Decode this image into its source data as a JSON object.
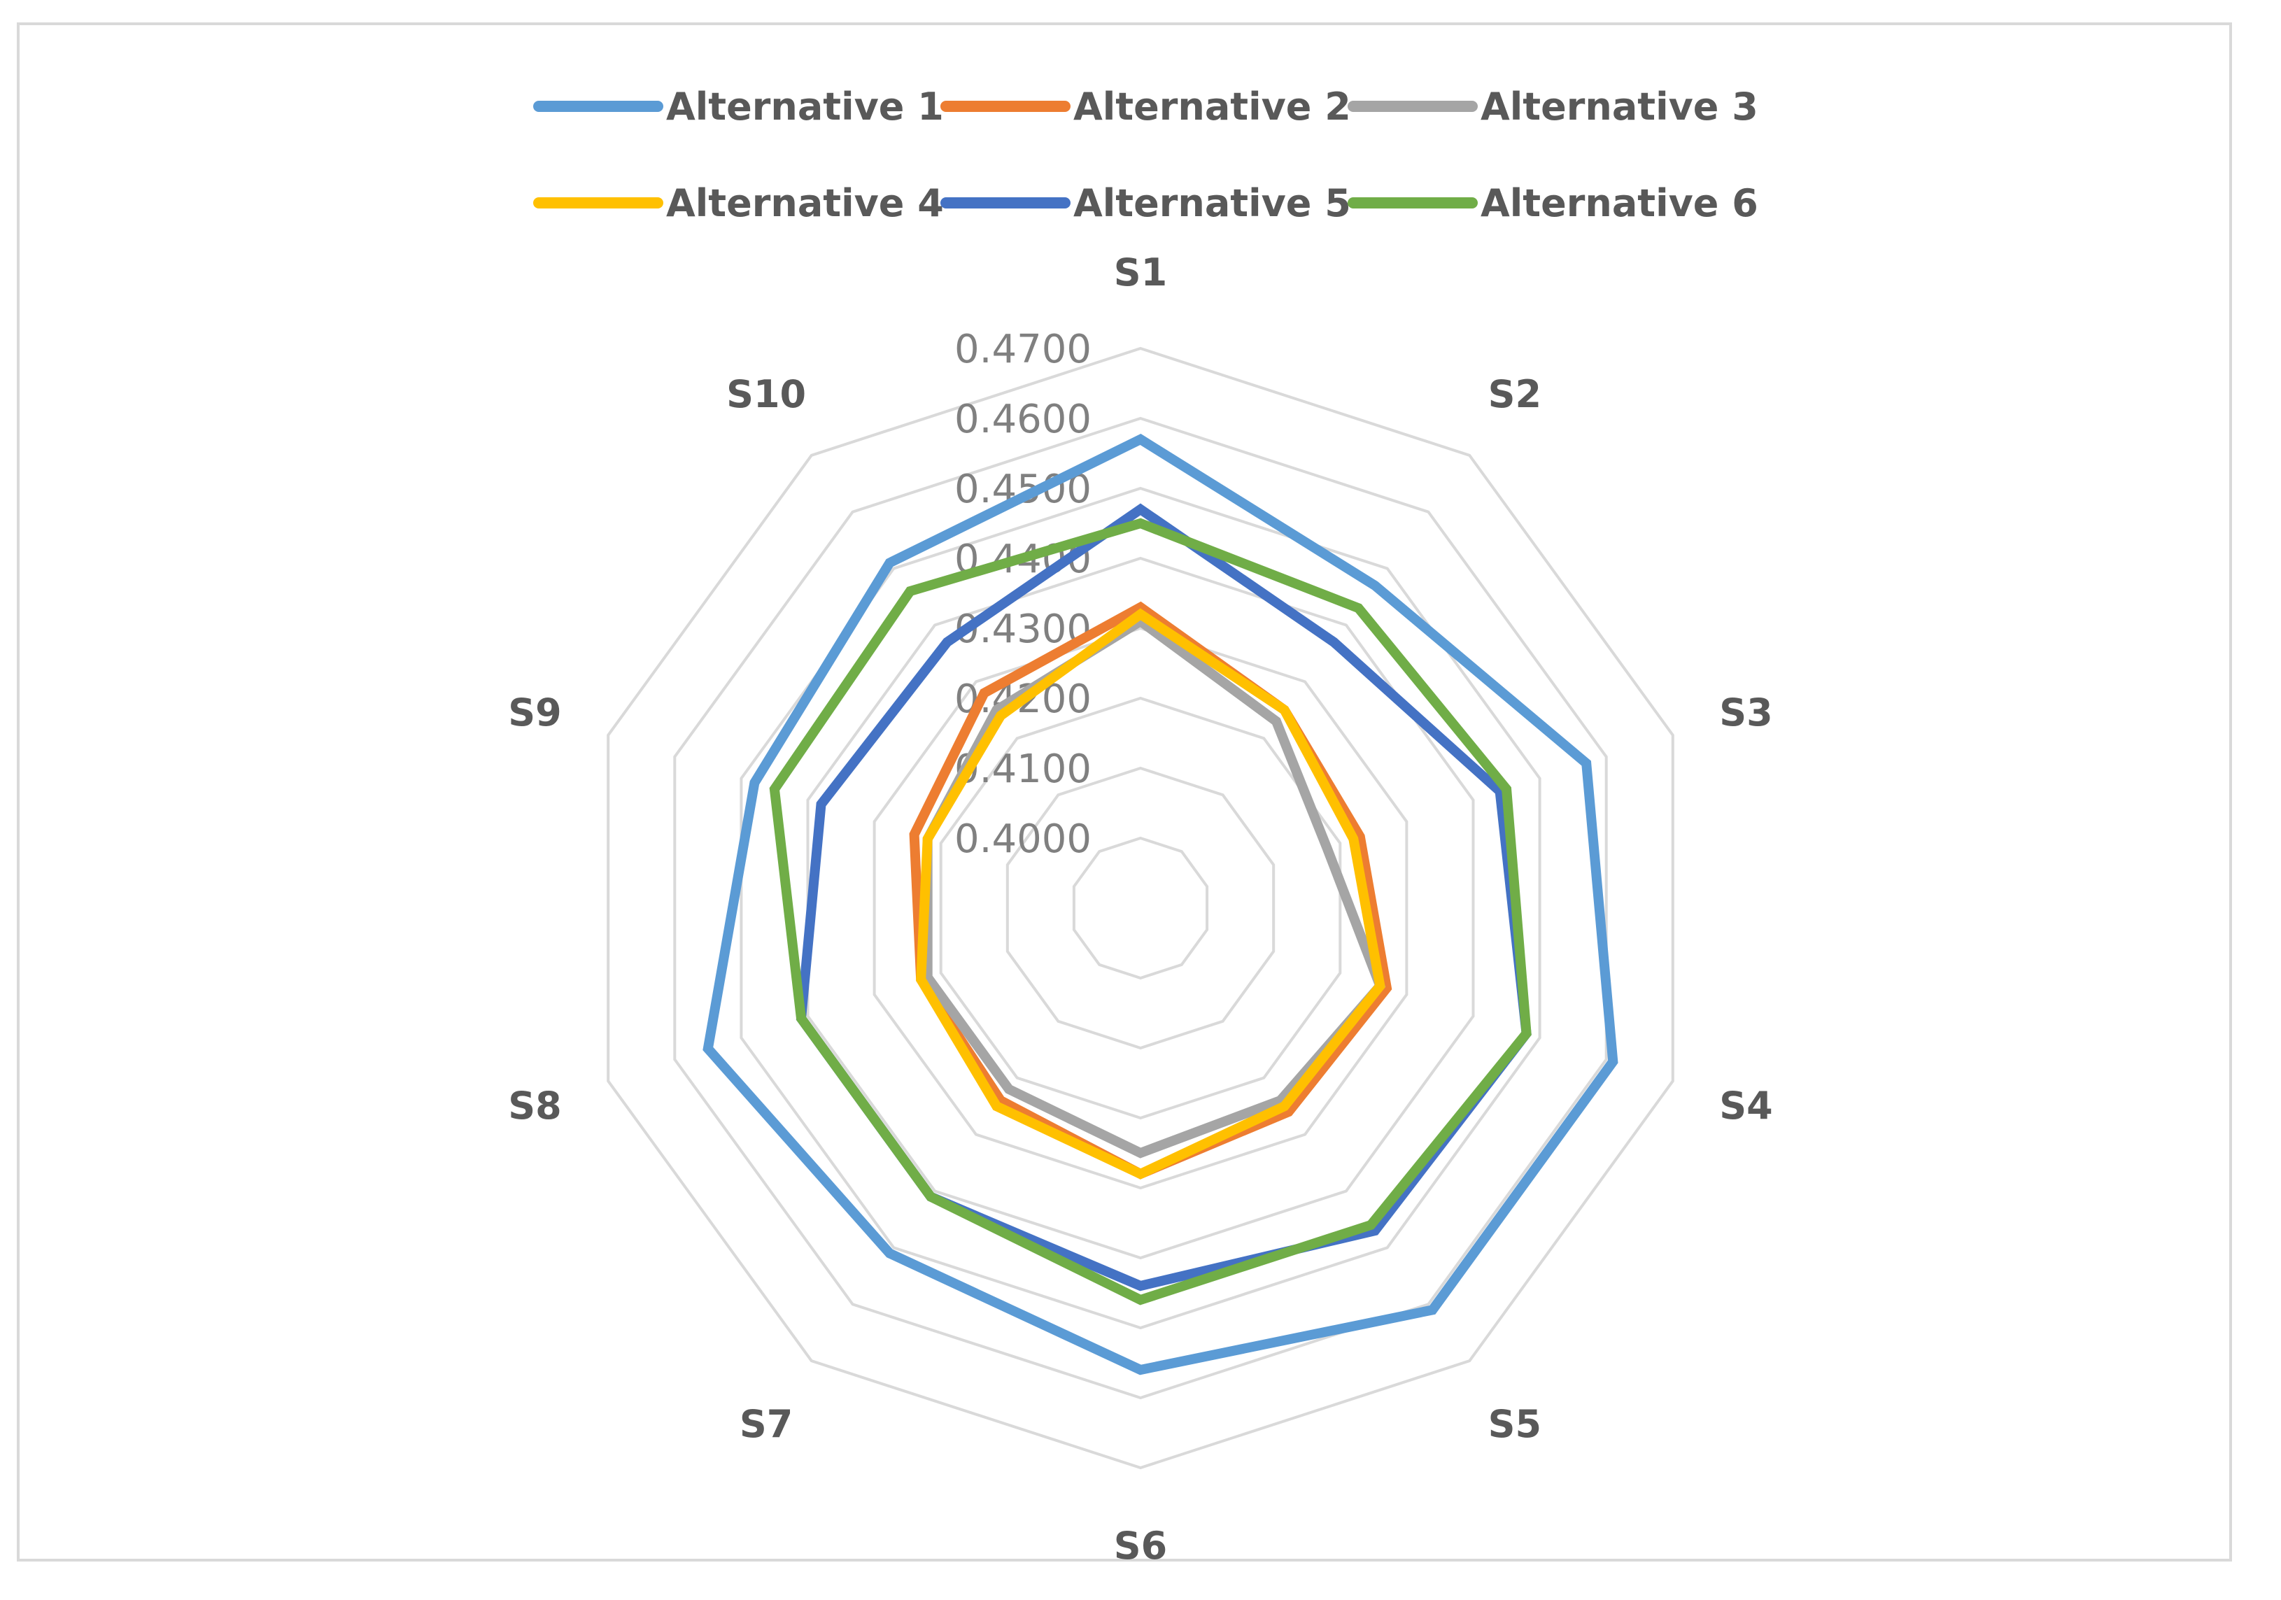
{
  "chart_data": {
    "type": "radar",
    "title": "",
    "axes": [
      "S1",
      "S2",
      "S3",
      "S4",
      "S5",
      "S6",
      "S7",
      "S8",
      "S9",
      "S10"
    ],
    "r_range": [
      0.39,
      0.47
    ],
    "ticks": [
      "0.4000",
      "0.4100",
      "0.4200",
      "0.4300",
      "0.4400",
      "0.4500",
      "0.4600",
      "0.4700"
    ],
    "tick_values": [
      0.4,
      0.41,
      0.42,
      0.43,
      0.44,
      0.45,
      0.46,
      0.47
    ],
    "grid_values": [
      0.39,
      0.4,
      0.41,
      0.42,
      0.43,
      0.44,
      0.45,
      0.46,
      0.47
    ],
    "legend_position": "top",
    "series": [
      {
        "name": "Alternative 1",
        "color": "#5b9bd5",
        "values": [
          0.457,
          0.447,
          0.457,
          0.461,
          0.461,
          0.456,
          0.451,
          0.455,
          0.448,
          0.451
        ]
      },
      {
        "name": "Alternative 2",
        "color": "#ed7d31",
        "values": [
          0.433,
          0.425,
          0.423,
          0.427,
          0.426,
          0.428,
          0.424,
          0.423,
          0.424,
          0.428
        ]
      },
      {
        "name": "Alternative 3",
        "color": "#a5a5a5",
        "values": [
          0.431,
          0.423,
          0.418,
          0.426,
          0.424,
          0.425,
          0.422,
          0.422,
          0.422,
          0.425
        ]
      },
      {
        "name": "Alternative 4",
        "color": "#ffc000",
        "values": [
          0.432,
          0.425,
          0.422,
          0.426,
          0.425,
          0.428,
          0.425,
          0.423,
          0.422,
          0.424
        ]
      },
      {
        "name": "Alternative 5",
        "color": "#4472c4",
        "values": [
          0.447,
          0.437,
          0.444,
          0.448,
          0.447,
          0.444,
          0.441,
          0.441,
          0.438,
          0.437
        ]
      },
      {
        "name": "Alternative 6",
        "color": "#70ad47",
        "values": [
          0.445,
          0.443,
          0.445,
          0.448,
          0.446,
          0.446,
          0.441,
          0.441,
          0.445,
          0.446
        ]
      }
    ]
  }
}
